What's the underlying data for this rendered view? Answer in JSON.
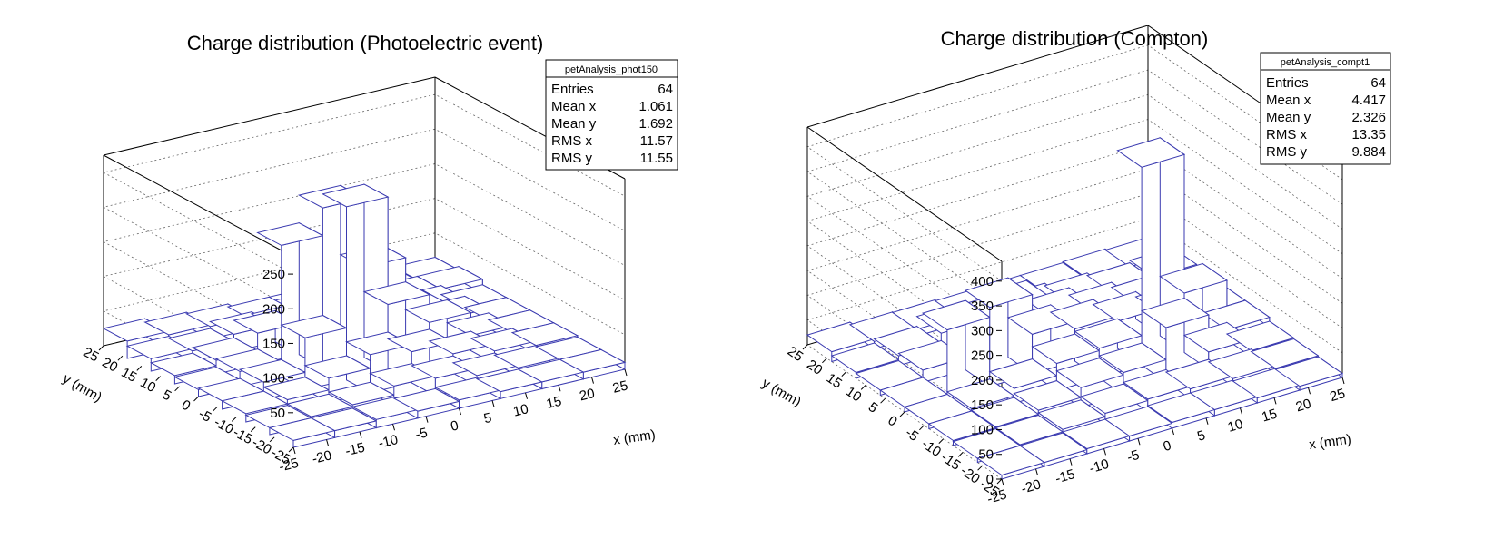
{
  "chart_data": [
    {
      "type": "lego",
      "title": "Charge distribution (Photoelectric event)",
      "xlabel": "x (mm)",
      "ylabel": "y (mm)",
      "xlim": [
        -25,
        25
      ],
      "ylim": [
        -25,
        25
      ],
      "zlim": [
        0,
        275
      ],
      "xticks": [
        -25,
        -20,
        -15,
        -10,
        -5,
        0,
        5,
        10,
        15,
        20,
        25
      ],
      "yticks": [
        -25,
        -20,
        -15,
        -10,
        -5,
        0,
        5,
        10,
        15,
        20,
        25
      ],
      "zticks": [
        50,
        100,
        150,
        200,
        250
      ],
      "bin_color": "#3a3ab0",
      "stats": {
        "name": "petAnalysis_phot150",
        "rows": [
          {
            "label": "Entries",
            "value": "64"
          },
          {
            "label": "Mean x",
            "value": "1.061"
          },
          {
            "label": "Mean y",
            "value": "1.692"
          },
          {
            "label": "RMS x",
            "value": "11.57"
          },
          {
            "label": "RMS y",
            "value": "11.55"
          }
        ]
      },
      "z": [
        [
          10,
          10,
          12,
          10,
          12,
          10,
          10,
          10
        ],
        [
          10,
          12,
          15,
          28,
          25,
          15,
          12,
          10
        ],
        [
          12,
          18,
          35,
          55,
          45,
          28,
          18,
          12
        ],
        [
          12,
          25,
          75,
          250,
          95,
          55,
          22,
          12
        ],
        [
          10,
          22,
          190,
          230,
          130,
          50,
          28,
          12
        ],
        [
          12,
          20,
          45,
          60,
          50,
          35,
          25,
          12
        ],
        [
          18,
          15,
          25,
          22,
          20,
          18,
          20,
          20
        ],
        [
          25,
          20,
          18,
          14,
          14,
          15,
          14,
          15
        ]
      ]
    },
    {
      "type": "lego",
      "title": "Charge distribution (Compton)",
      "xlabel": "x (mm)",
      "ylabel": "y (mm)",
      "xlim": [
        -25,
        25
      ],
      "ylim": [
        -25,
        25
      ],
      "zlim": [
        0,
        440
      ],
      "xticks": [
        -25,
        -20,
        -15,
        -10,
        -5,
        0,
        5,
        10,
        15,
        20,
        25
      ],
      "yticks": [
        -25,
        -20,
        -15,
        -10,
        -5,
        0,
        5,
        10,
        15,
        20,
        25
      ],
      "zticks": [
        0,
        50,
        100,
        150,
        200,
        250,
        300,
        350,
        400
      ],
      "bin_color": "#3a3ab0",
      "stats": {
        "name": "petAnalysis_compt1",
        "rows": [
          {
            "label": "Entries",
            "value": "64"
          },
          {
            "label": "Mean x",
            "value": "4.417"
          },
          {
            "label": "Mean y",
            "value": "2.326"
          },
          {
            "label": "RMS x",
            "value": "13.35"
          },
          {
            "label": "RMS y",
            "value": "9.884"
          }
        ]
      },
      "z": [
        [
          8,
          8,
          10,
          10,
          12,
          12,
          10,
          8
        ],
        [
          8,
          10,
          15,
          22,
          25,
          20,
          15,
          10
        ],
        [
          10,
          12,
          20,
          40,
          45,
          110,
          35,
          12
        ],
        [
          10,
          15,
          30,
          55,
          60,
          400,
          120,
          20
        ],
        [
          10,
          140,
          160,
          80,
          65,
          55,
          45,
          20
        ],
        [
          10,
          25,
          85,
          95,
          55,
          40,
          30,
          20
        ],
        [
          12,
          20,
          40,
          35,
          30,
          25,
          20,
          25
        ],
        [
          20,
          15,
          14,
          12,
          12,
          12,
          14,
          12
        ]
      ]
    }
  ]
}
